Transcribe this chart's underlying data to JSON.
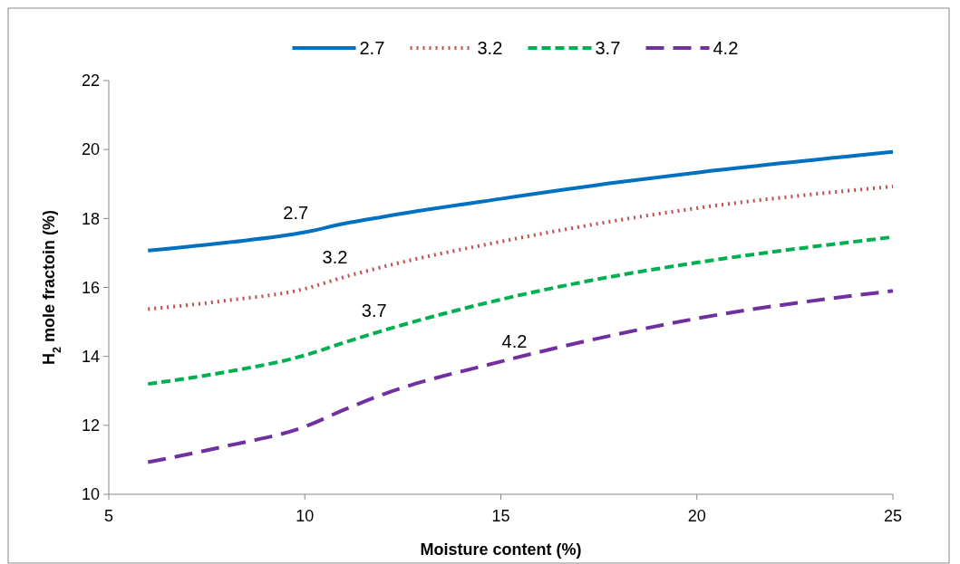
{
  "chart_data": {
    "type": "line",
    "xlabel": "Moisture content (%)",
    "ylabel": "H$_{2}$ mole fractoin (%)",
    "x": [
      6,
      8,
      10,
      11,
      12,
      15,
      18,
      20,
      25
    ],
    "xlim": [
      5,
      25
    ],
    "xticks": [
      5,
      10,
      15,
      20,
      25
    ],
    "ylim": [
      10,
      22
    ],
    "yticks": [
      10,
      12,
      14,
      16,
      18,
      20,
      22
    ],
    "grid": false,
    "legend": "top",
    "marker": "none",
    "series": [
      {
        "name": "2.7",
        "color": "#0070c0",
        "line_style": "solid",
        "values": [
          17.07,
          17.3,
          17.6,
          17.85,
          18.05,
          18.57,
          19.05,
          19.33,
          19.93
        ]
      },
      {
        "name": "3.2",
        "color": "#c0504d",
        "line_style": "dotted",
        "values": [
          15.37,
          15.62,
          15.96,
          16.3,
          16.6,
          17.33,
          17.95,
          18.3,
          18.93
        ]
      },
      {
        "name": "3.7",
        "color": "#00b050",
        "line_style": "dashed",
        "values": [
          13.2,
          13.55,
          14.03,
          14.4,
          14.75,
          15.65,
          16.35,
          16.72,
          17.46
        ]
      },
      {
        "name": "4.2",
        "color": "#7030a0",
        "line_style": "longdash",
        "values": [
          10.93,
          11.4,
          11.96,
          12.45,
          12.9,
          13.85,
          14.65,
          15.1,
          15.9
        ]
      }
    ]
  }
}
